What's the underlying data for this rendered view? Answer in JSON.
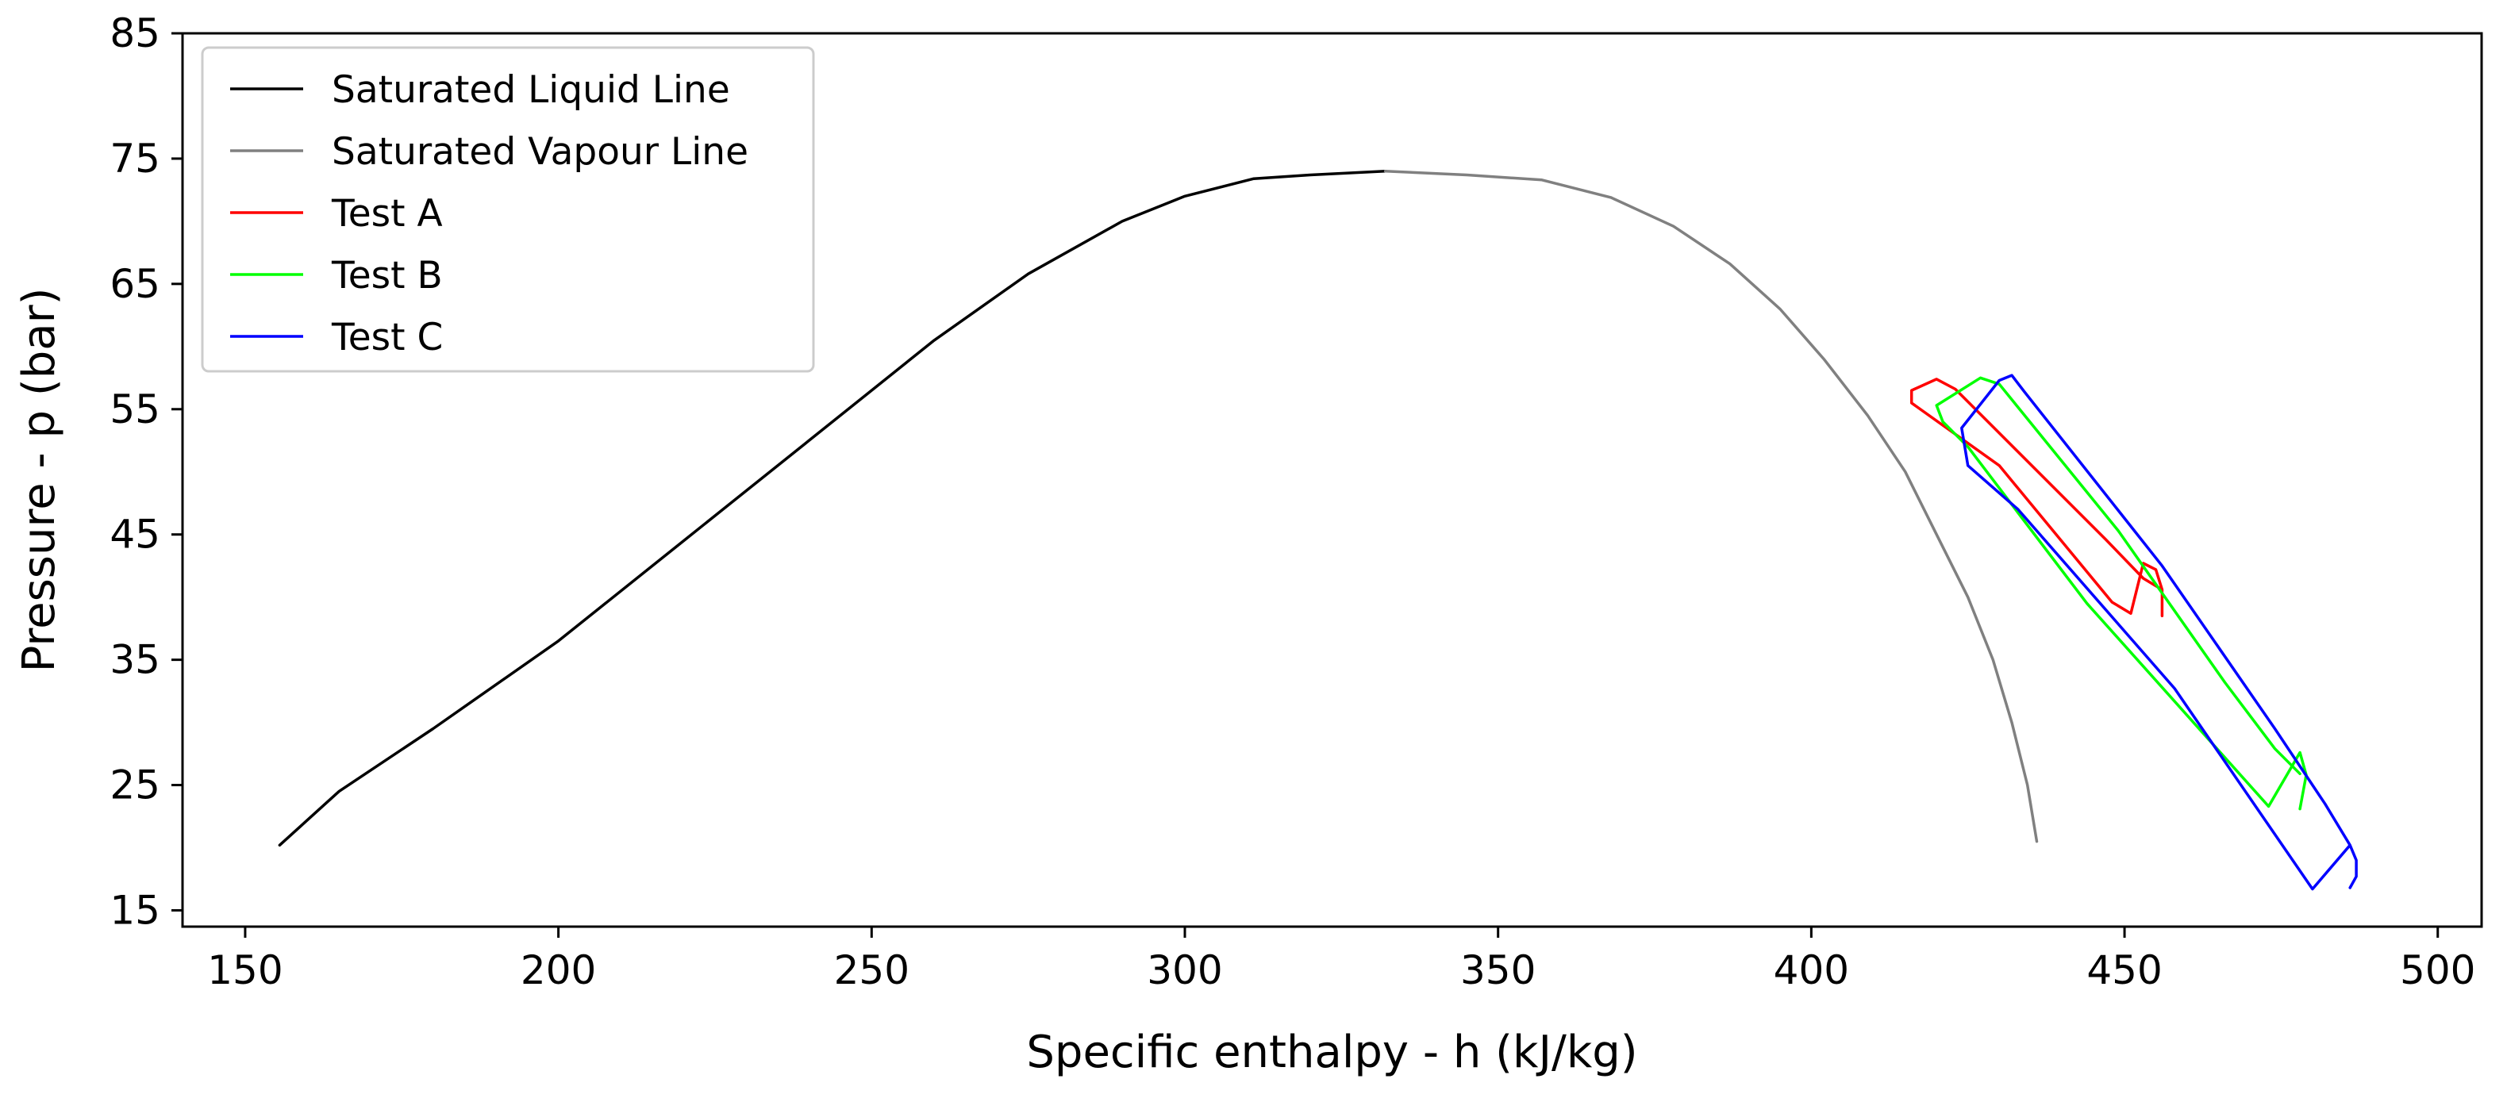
{
  "chart_data": {
    "type": "line",
    "title": "",
    "xlabel": "Specific enthalpy - h (kJ/kg)",
    "ylabel": "Pressure - p (bar)",
    "xlim": [
      140,
      507
    ],
    "ylim": [
      13.7,
      85
    ],
    "xticks": [
      150,
      200,
      250,
      300,
      350,
      400,
      450,
      500
    ],
    "yticks": [
      15,
      25,
      35,
      45,
      55,
      65,
      75,
      85
    ],
    "grid": false,
    "legend_position": "top-left",
    "series": [
      {
        "name": "Saturated Liquid Line",
        "color": "#000000",
        "x": [
          155.5,
          165,
          180,
          200,
          220,
          240,
          260,
          275,
          290,
          300,
          311,
          320,
          332
        ],
        "y": [
          20.2,
          24.5,
          29.5,
          36.5,
          44.5,
          52.5,
          60.5,
          65.8,
          70,
          72,
          73.4,
          73.7,
          74
        ]
      },
      {
        "name": "Saturated Vapour Line",
        "color": "#808080",
        "x": [
          332,
          345,
          357,
          368,
          378,
          387,
          395,
          402,
          409,
          415,
          420,
          425,
          429,
          432,
          434.5,
          436
        ],
        "y": [
          74,
          73.7,
          73.3,
          71.9,
          69.6,
          66.6,
          63,
          59,
          54.5,
          50,
          45,
          40,
          35,
          30,
          25,
          20.5
        ]
      },
      {
        "name": "Test A",
        "color": "#ff0000",
        "x": [
          456,
          456,
          455,
          453,
          451,
          448,
          430,
          416,
          416,
          420,
          423,
          447,
          453,
          456
        ],
        "y": [
          38.5,
          40.6,
          42.2,
          42.7,
          38.7,
          39.6,
          50.5,
          55.5,
          56.5,
          57.4,
          56.6,
          44.6,
          41.5,
          40.6
        ]
      },
      {
        "name": "Test B",
        "color": "#00ff00",
        "x": [
          478,
          479,
          478,
          473,
          444,
          425,
          421,
          420,
          427,
          430,
          449,
          466,
          474,
          478
        ],
        "y": [
          23.1,
          25.8,
          27.6,
          23.3,
          39.5,
          52,
          54,
          55.3,
          57.5,
          57,
          45.3,
          33.2,
          27.9,
          25.9
        ]
      },
      {
        "name": "Test C",
        "color": "#0000ff",
        "x": [
          486,
          487,
          487,
          486,
          480,
          458,
          433,
          425,
          424,
          430,
          432,
          434,
          456,
          474,
          482,
          486
        ],
        "y": [
          16.8,
          17.7,
          19,
          20.2,
          16.7,
          32.7,
          47,
          50.5,
          53.5,
          57.3,
          57.7,
          56.4,
          42.5,
          29.5,
          23.5,
          20.2
        ]
      }
    ]
  }
}
